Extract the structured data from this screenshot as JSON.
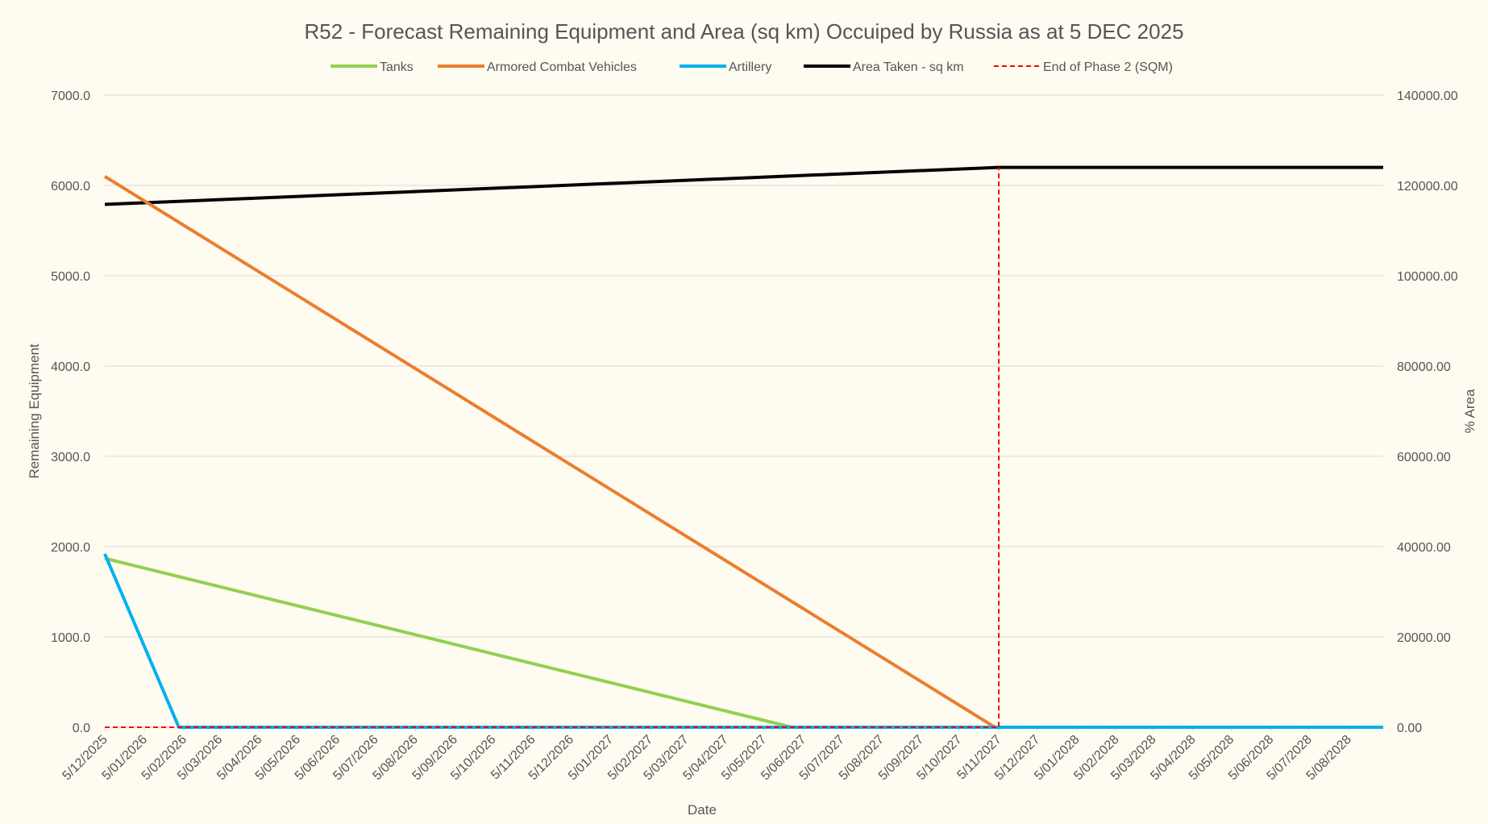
{
  "chart_data": {
    "type": "line",
    "title": "R52 - Forecast Remaining Equipment and Area (sq km) Occuiped by Russia as at 5 DEC 2025",
    "xlabel": "Date",
    "ylabel": "Remaining Equipment",
    "y2label": "% Area",
    "ylim": [
      0,
      7000
    ],
    "y2lim": [
      0,
      140000
    ],
    "y_ticks": [
      "0.0",
      "1000.0",
      "2000.0",
      "3000.0",
      "4000.0",
      "5000.0",
      "6000.0",
      "7000.0"
    ],
    "y2_ticks": [
      "0.00",
      "20000.00",
      "40000.00",
      "60000.00",
      "80000.00",
      "100000.00",
      "120000.00",
      "140000.00"
    ],
    "categories": [
      "5/12/2025",
      "5/01/2026",
      "5/02/2026",
      "5/03/2026",
      "5/04/2026",
      "5/05/2026",
      "5/06/2026",
      "5/07/2026",
      "5/08/2026",
      "5/09/2026",
      "5/10/2026",
      "5/11/2026",
      "5/12/2026",
      "5/01/2027",
      "5/02/2027",
      "5/03/2027",
      "5/04/2027",
      "5/05/2027",
      "5/06/2027",
      "5/07/2027",
      "5/08/2027",
      "5/09/2027",
      "5/10/2027",
      "5/11/2027",
      "5/12/2027",
      "5/01/2028",
      "5/02/2028",
      "5/03/2028",
      "5/04/2028",
      "5/05/2028",
      "5/06/2028",
      "5/07/2028",
      "5/08/2028"
    ],
    "x_end": "2028-09-01",
    "legend_position": "top",
    "grid": true,
    "series": [
      {
        "name": "Tanks",
        "color": "#92d050",
        "axis": "left",
        "style": "solid",
        "points": [
          [
            "2025-12-05",
            1870
          ],
          [
            "2027-05-27",
            0
          ],
          [
            "2028-09-01",
            0
          ]
        ]
      },
      {
        "name": "Armored Combat Vehicles",
        "color": "#ed7d31",
        "axis": "left",
        "style": "solid",
        "points": [
          [
            "2025-12-05",
            6100
          ],
          [
            "2027-11-02",
            0
          ],
          [
            "2028-09-01",
            0
          ]
        ]
      },
      {
        "name": "Artillery",
        "color": "#00b0f0",
        "axis": "left",
        "style": "solid",
        "points": [
          [
            "2025-12-05",
            1920
          ],
          [
            "2026-02-01",
            0
          ],
          [
            "2028-09-01",
            0
          ]
        ]
      },
      {
        "name": "Area Taken - sq km",
        "color": "#000000",
        "axis": "right",
        "style": "solid",
        "points": [
          [
            "2025-12-05",
            115800
          ],
          [
            "2027-11-05",
            124000
          ],
          [
            "2028-09-01",
            124000
          ]
        ]
      },
      {
        "name": "End of Phase 2 (SQM)",
        "color": "#ff0000",
        "axis": "right",
        "style": "dashed",
        "points": [
          [
            "2025-12-05",
            0
          ],
          [
            "2027-11-05",
            0
          ],
          [
            "2027-11-05",
            124000
          ]
        ]
      }
    ]
  }
}
